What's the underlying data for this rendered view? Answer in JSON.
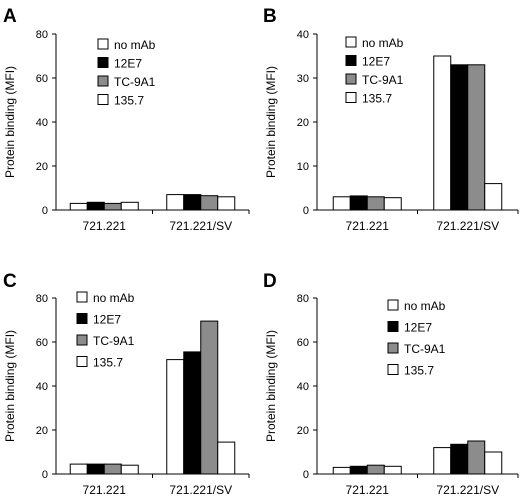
{
  "series_colors": [
    "#ffffff",
    "#000000",
    "#8c8c8c",
    "#ffffff"
  ],
  "chart_data": [
    {
      "panel": "A",
      "type": "bar",
      "categories": [
        "721.221",
        "721.221/SV"
      ],
      "ylabel": "Protein binding (MFI)",
      "ylim": [
        0,
        80
      ],
      "yticks": [
        0,
        20,
        40,
        60,
        80
      ],
      "legend": "upper-left",
      "series": [
        {
          "name": "no mAb",
          "values": [
            3,
            7
          ]
        },
        {
          "name": "12E7",
          "values": [
            3.5,
            7
          ]
        },
        {
          "name": "TC-9A1",
          "values": [
            3,
            6.5
          ]
        },
        {
          "name": "135.7",
          "values": [
            3.5,
            6
          ]
        }
      ]
    },
    {
      "panel": "B",
      "type": "bar",
      "categories": [
        "721.221",
        "721.221/SV"
      ],
      "ylabel": "Protein binding (MFI)",
      "ylim": [
        0,
        40
      ],
      "yticks": [
        0,
        10,
        20,
        30,
        40
      ],
      "legend": "upper-right",
      "series": [
        {
          "name": "no mAb",
          "values": [
            3,
            35
          ]
        },
        {
          "name": "12E7",
          "values": [
            3.2,
            33
          ]
        },
        {
          "name": "TC-9A1",
          "values": [
            3,
            33
          ]
        },
        {
          "name": "135.7",
          "values": [
            2.8,
            6
          ]
        }
      ]
    },
    {
      "panel": "C",
      "type": "bar",
      "categories": [
        "721.221",
        "721.221/SV"
      ],
      "ylabel": "Protein binding (MFI)",
      "ylim": [
        0,
        80
      ],
      "yticks": [
        0,
        20,
        40,
        60,
        80
      ],
      "legend": "upper-left",
      "series": [
        {
          "name": "no mAb",
          "values": [
            4.5,
            52
          ]
        },
        {
          "name": "12E7",
          "values": [
            4.5,
            55.5
          ]
        },
        {
          "name": "TC-9A1",
          "values": [
            4.5,
            69.5
          ]
        },
        {
          "name": "135.7",
          "values": [
            4,
            14.5
          ]
        }
      ]
    },
    {
      "panel": "D",
      "type": "bar",
      "categories": [
        "721.221",
        "721.221/SV"
      ],
      "ylabel": "Protein binding (MFI)",
      "ylim": [
        0,
        80
      ],
      "yticks": [
        0,
        20,
        40,
        60,
        80
      ],
      "legend": "upper-right",
      "series": [
        {
          "name": "no mAb",
          "values": [
            3,
            12
          ]
        },
        {
          "name": "12E7",
          "values": [
            3.5,
            13.5
          ]
        },
        {
          "name": "TC-9A1",
          "values": [
            4,
            15
          ]
        },
        {
          "name": "135.7",
          "values": [
            3.5,
            10
          ]
        }
      ]
    }
  ]
}
